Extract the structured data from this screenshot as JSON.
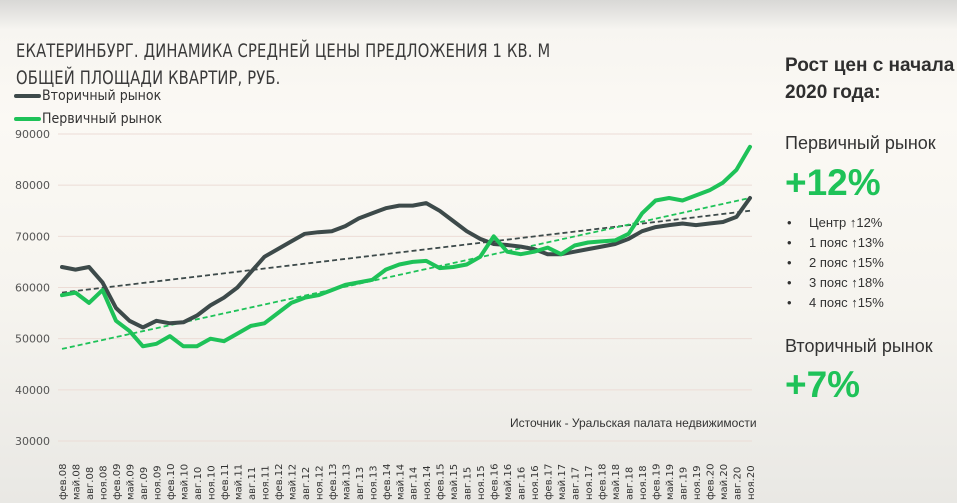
{
  "title": {
    "line1": "ЕКАТЕРИНБУРГ. ДИНАМИКА СРЕДНЕЙ ЦЕНЫ ПРЕДЛОЖЕНИЯ 1 КВ. М",
    "line2": "ОБЩЕЙ ПЛОЩАДИ КВАРТИР,  РУБ."
  },
  "legend": [
    {
      "label": "Вторичный рынок",
      "color": "#3d4a4a"
    },
    {
      "label": "Первичный рынок",
      "color": "#1ec258"
    }
  ],
  "source": "Источник - Уральская палата недвижимости",
  "side_panel": {
    "heading_line1": "Рост цен с начала",
    "heading_line2": "2020 года:",
    "primary": {
      "label": "Первичный рынок",
      "value": "+12%",
      "breakdown": [
        {
          "name": "Центр",
          "arrow": "↑",
          "value": "12%"
        },
        {
          "name": "1 пояс",
          "arrow": "↑",
          "value": "13%"
        },
        {
          "name": "2 пояс",
          "arrow": "↑",
          "value": "15%"
        },
        {
          "name": "3 пояс",
          "arrow": "↑",
          "value": "18%"
        },
        {
          "name": "4 пояс",
          "arrow": "↑",
          "value": "15%"
        }
      ]
    },
    "secondary": {
      "label": "Вторичный рынок",
      "value": "+7%"
    },
    "bullet": "•"
  },
  "colors": {
    "secondary": "#3d4a4a",
    "primary": "#1ec258",
    "accent": "#1ec258"
  },
  "chart_data": {
    "type": "line",
    "title": "ЕКАТЕРИНБУРГ. ДИНАМИКА СРЕДНЕЙ ЦЕНЫ ПРЕДЛОЖЕНИЯ 1 КВ. М ОБЩЕЙ ПЛОЩАДИ КВАРТИР, РУБ.",
    "xlabel": "",
    "ylabel": "",
    "ylim": [
      30000,
      90000
    ],
    "yticks": [
      30000,
      40000,
      50000,
      60000,
      70000,
      80000,
      90000
    ],
    "grid": true,
    "legend_position": "top-left",
    "categories": [
      "фев.08",
      "май.08",
      "авг.08",
      "ноя.08",
      "фев.09",
      "май.09",
      "авг.09",
      "ноя.09",
      "фев.10",
      "май.10",
      "авг.10",
      "ноя.10",
      "фев.11",
      "май.11",
      "авг.11",
      "ноя.11",
      "фев.12",
      "май.12",
      "авг.12",
      "ноя.12",
      "фев.13",
      "май.13",
      "авг.13",
      "ноя.13",
      "фев.14",
      "май.14",
      "авг.14",
      "ноя.14",
      "фев.15",
      "май.15",
      "авг.15",
      "ноя.15",
      "фев.16",
      "май.16",
      "авг.16",
      "ноя.16",
      "фев.17",
      "май.17",
      "авг.17",
      "ноя.17",
      "фев.18",
      "май.18",
      "авг.18",
      "ноя.18",
      "фев.19",
      "май.19",
      "авг.19",
      "ноя.19",
      "фев.20",
      "май.20",
      "авг.20",
      "ноя.20"
    ],
    "series": [
      {
        "name": "Вторичный рынок",
        "color": "#3d4a4a",
        "values": [
          64000,
          63500,
          64000,
          61000,
          56000,
          53500,
          52200,
          53500,
          53000,
          53200,
          54500,
          56500,
          58000,
          60000,
          63000,
          66000,
          67500,
          69000,
          70500,
          70800,
          71000,
          72000,
          73500,
          74500,
          75500,
          76000,
          76000,
          76500,
          75000,
          73000,
          71000,
          69500,
          68500,
          68300,
          68000,
          67500,
          66500,
          66500,
          67000,
          67500,
          68000,
          68500,
          69500,
          71000,
          71800,
          72200,
          72500,
          72200,
          72500,
          72800,
          73800,
          77500
        ]
      },
      {
        "name": "Первичный рынок",
        "color": "#1ec258",
        "values": [
          58500,
          59000,
          57000,
          59500,
          53500,
          51500,
          48500,
          49000,
          50500,
          48500,
          48500,
          50000,
          49500,
          51000,
          52500,
          53000,
          55000,
          57000,
          58000,
          58500,
          59500,
          60500,
          61000,
          61500,
          63500,
          64500,
          65000,
          65200,
          63800,
          64000,
          64500,
          66000,
          70000,
          67000,
          66500,
          67000,
          67800,
          66500,
          68200,
          68800,
          69000,
          69200,
          70500,
          74500,
          77000,
          77500,
          77000,
          78000,
          79000,
          80500,
          83000,
          87500
        ]
      }
    ],
    "trendlines": [
      {
        "name": "Вторичный рынок (тренд)",
        "color": "#3d4a4a",
        "style": "dashed",
        "start": 59000,
        "end": 75000
      },
      {
        "name": "Первичный рынок (тренд)",
        "color": "#1ec258",
        "style": "dashed",
        "start": 48000,
        "end": 77500
      }
    ]
  }
}
